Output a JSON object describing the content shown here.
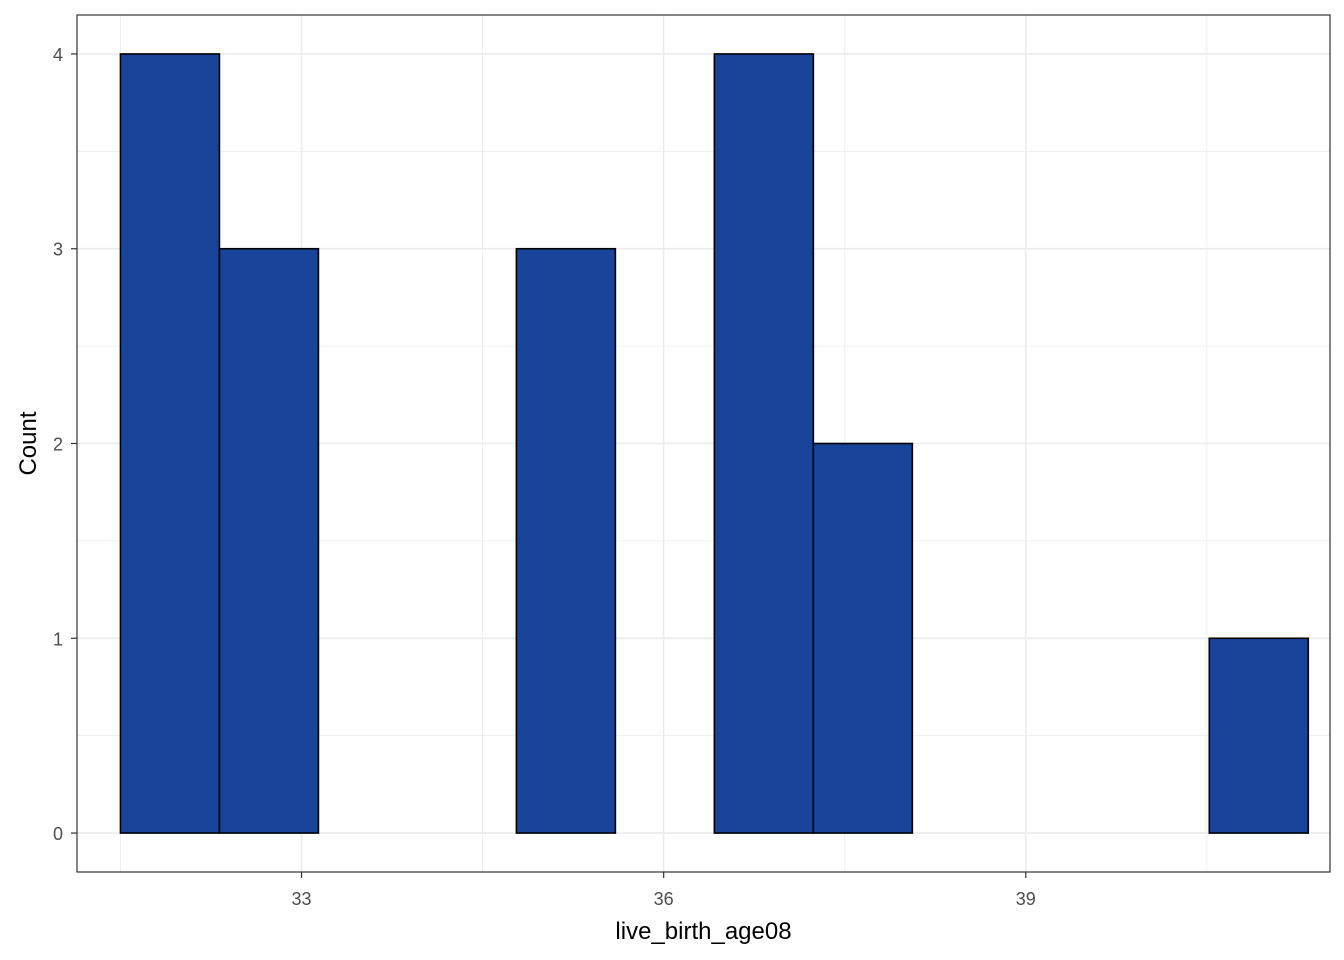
{
  "chart_data": {
    "type": "bar",
    "subtype": "histogram",
    "title": "",
    "xlabel": "live_birth_age08",
    "ylabel": "Count",
    "x_ticks": [
      33,
      36,
      39
    ],
    "y_ticks": [
      0,
      1,
      2,
      3,
      4
    ],
    "xlim": [
      31.14,
      41.52
    ],
    "ylim": [
      -0.2,
      4.2
    ],
    "bin_width": 0.82,
    "bins": [
      {
        "x_start": 31.5,
        "x_end": 32.32,
        "count": 4
      },
      {
        "x_start": 32.32,
        "x_end": 33.14,
        "count": 3
      },
      {
        "x_start": 33.14,
        "x_end": 33.96,
        "count": 0
      },
      {
        "x_start": 33.96,
        "x_end": 34.78,
        "count": 0
      },
      {
        "x_start": 34.78,
        "x_end": 35.6,
        "count": 3
      },
      {
        "x_start": 35.6,
        "x_end": 36.42,
        "count": 0
      },
      {
        "x_start": 36.42,
        "x_end": 37.24,
        "count": 4
      },
      {
        "x_start": 37.24,
        "x_end": 38.06,
        "count": 2
      },
      {
        "x_start": 38.06,
        "x_end": 38.88,
        "count": 0
      },
      {
        "x_start": 38.88,
        "x_end": 39.7,
        "count": 0
      },
      {
        "x_start": 39.7,
        "x_end": 40.52,
        "count": 0
      },
      {
        "x_start": 40.52,
        "x_end": 41.34,
        "count": 1
      }
    ],
    "fill_color": "#18449A",
    "outline_color": "#000000",
    "grid": true,
    "grid_color": "#EBEBEB",
    "panel_border_color": "#333333",
    "legend": "none"
  }
}
